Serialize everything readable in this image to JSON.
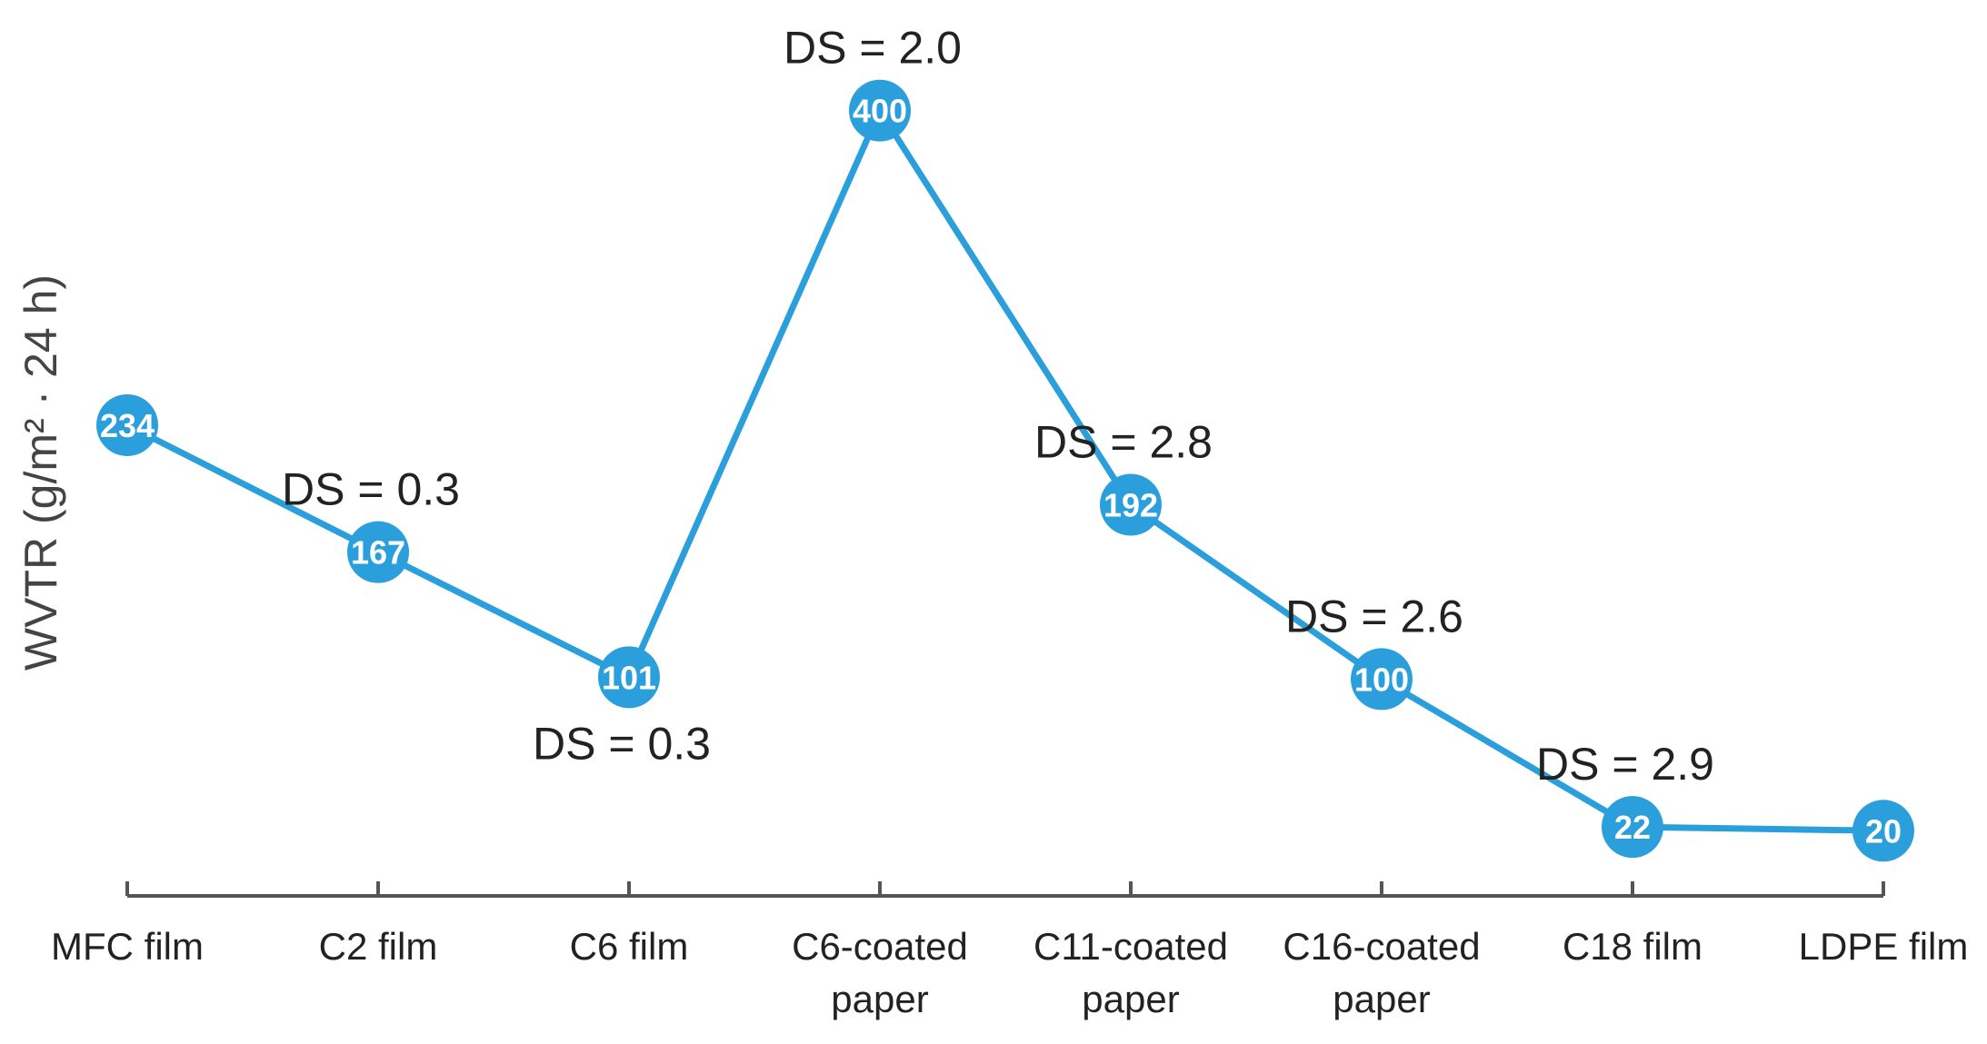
{
  "chart_data": {
    "type": "line",
    "title": "",
    "xlabel": "",
    "ylabel": "WVTR (g/m² · 24 h)",
    "categories": [
      "MFC film",
      "C2 film",
      "C6 film",
      "C6-coated paper",
      "C11-coated paper",
      "C16-coated paper",
      "C18 film",
      "LDPE film"
    ],
    "category_lines": [
      [
        "MFC film"
      ],
      [
        "C2 film"
      ],
      [
        "C6 film"
      ],
      [
        "C6-coated",
        "paper"
      ],
      [
        "C11-coated",
        "paper"
      ],
      [
        "C16-coated",
        "paper"
      ],
      [
        "C18 film"
      ],
      [
        "LDPE film"
      ]
    ],
    "values": [
      234,
      167,
      101,
      400,
      192,
      100,
      22,
      20
    ],
    "ds_annotations": [
      {
        "index": 1,
        "text": "DS = 0.3",
        "placement": "above"
      },
      {
        "index": 2,
        "text": "DS = 0.3",
        "placement": "below"
      },
      {
        "index": 3,
        "text": "DS = 2.0",
        "placement": "above"
      },
      {
        "index": 4,
        "text": "DS = 2.8",
        "placement": "above"
      },
      {
        "index": 5,
        "text": "DS = 2.6",
        "placement": "above"
      },
      {
        "index": 6,
        "text": "DS = 2.9",
        "placement": "above"
      }
    ],
    "ylim": [
      0,
      420
    ],
    "grid": false,
    "colors": {
      "series": "#2b9fdb",
      "axis": "#555555",
      "text": "#222222"
    }
  }
}
